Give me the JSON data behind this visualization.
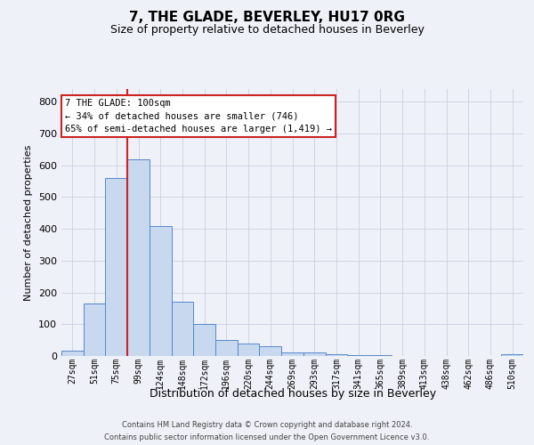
{
  "title": "7, THE GLADE, BEVERLEY, HU17 0RG",
  "subtitle": "Size of property relative to detached houses in Beverley",
  "xlabel": "Distribution of detached houses by size in Beverley",
  "ylabel": "Number of detached properties",
  "footnote1": "Contains HM Land Registry data © Crown copyright and database right 2024.",
  "footnote2": "Contains public sector information licensed under the Open Government Licence v3.0.",
  "bar_color": "#c8d8ee",
  "bar_edge_color": "#5588cc",
  "grid_color": "#c8d0e0",
  "background_color": "#eef1f8",
  "annotation_box_facecolor": "#ffffff",
  "annotation_border_color": "#cc2222",
  "red_line_color": "#cc2222",
  "categories": [
    "27sqm",
    "51sqm",
    "75sqm",
    "99sqm",
    "124sqm",
    "148sqm",
    "172sqm",
    "196sqm",
    "220sqm",
    "244sqm",
    "269sqm",
    "293sqm",
    "317sqm",
    "341sqm",
    "365sqm",
    "389sqm",
    "413sqm",
    "438sqm",
    "462sqm",
    "486sqm",
    "510sqm"
  ],
  "values": [
    18,
    165,
    560,
    620,
    410,
    170,
    102,
    50,
    40,
    30,
    12,
    10,
    5,
    3,
    2,
    1,
    1,
    1,
    1,
    1,
    6
  ],
  "property_bin_index": 3,
  "annotation_line1": "7 THE GLADE: 100sqm",
  "annotation_line2": "← 34% of detached houses are smaller (746)",
  "annotation_line3": "65% of semi-detached houses are larger (1,419) →",
  "ylim_max": 840,
  "yticks": [
    0,
    100,
    200,
    300,
    400,
    500,
    600,
    700,
    800
  ]
}
